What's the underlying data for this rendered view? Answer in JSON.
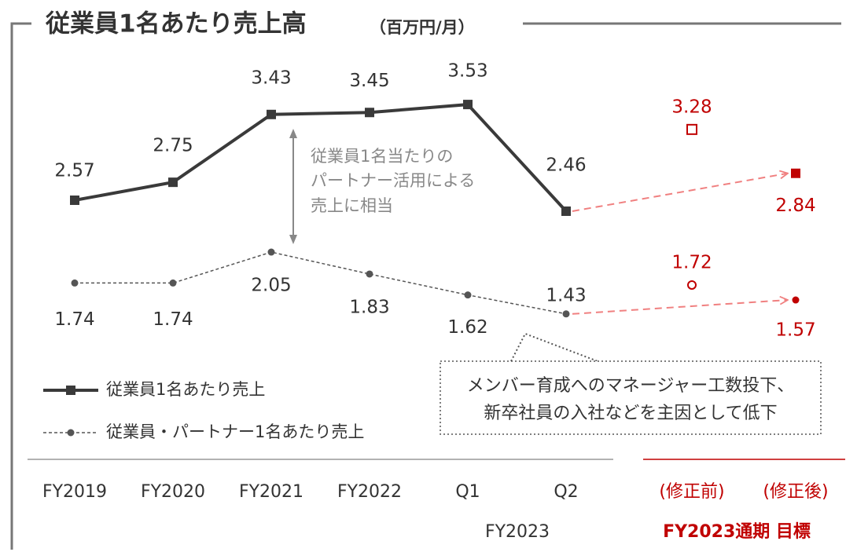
{
  "chart_data": {
    "type": "line",
    "title": "従業員1名あたり売上高",
    "subtitle": "（百万円/月）",
    "categories": [
      "FY2019",
      "FY2020",
      "FY2021",
      "FY2022",
      "Q1",
      "Q2",
      "(修正前)",
      "(修正後)"
    ],
    "group_labels": [
      "FY2023",
      "FY2023通期 目標"
    ],
    "series": [
      {
        "name": "従業員1名あたり売上",
        "color": "#3a3a3a",
        "values": [
          2.57,
          2.75,
          3.43,
          3.45,
          3.53,
          2.46,
          3.28,
          2.84
        ]
      },
      {
        "name": "従業員・パートナー1名あたり売上",
        "color": "#555555",
        "values": [
          1.74,
          1.74,
          2.05,
          1.83,
          1.62,
          1.43,
          1.72,
          1.57
        ]
      }
    ],
    "target_color": "#c00000",
    "arrow_color": "#f08080",
    "annotations": {
      "gap": [
        "従業員1名当たりの",
        "パートナー活用による",
        "売上に相当"
      ],
      "callout": [
        "メンバー育成へのマネージャー工数投下、",
        "新卒社員の入社などを主因として低下"
      ]
    }
  }
}
